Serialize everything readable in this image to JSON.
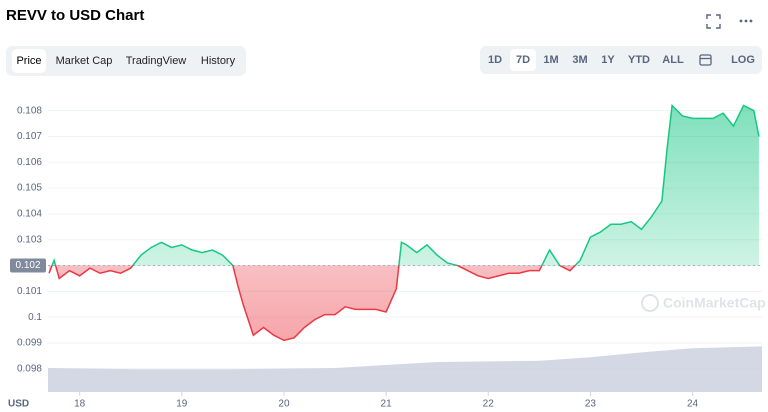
{
  "header": {
    "title": "REVV to USD Chart"
  },
  "tabs": [
    "Price",
    "Market Cap",
    "TradingView",
    "History"
  ],
  "active_tab": 0,
  "ranges": [
    "1D",
    "7D",
    "1M",
    "3M",
    "1Y",
    "YTD",
    "ALL"
  ],
  "active_range": 1,
  "log_button": "LOG",
  "watermark": "CoinMarketCap",
  "chart_data": {
    "type": "line",
    "y_axis_unit": "USD",
    "x": [
      17.7,
      17.75,
      17.8,
      17.9,
      18.0,
      18.1,
      18.2,
      18.3,
      18.4,
      18.5,
      18.6,
      18.7,
      18.8,
      18.9,
      19.0,
      19.1,
      19.2,
      19.3,
      19.4,
      19.5,
      19.55,
      19.6,
      19.7,
      19.8,
      19.9,
      20.0,
      20.1,
      20.2,
      20.3,
      20.4,
      20.5,
      20.6,
      20.7,
      20.8,
      20.9,
      21.0,
      21.1,
      21.15,
      21.2,
      21.3,
      21.4,
      21.5,
      21.6,
      21.7,
      21.8,
      21.9,
      22.0,
      22.1,
      22.2,
      22.3,
      22.4,
      22.5,
      22.6,
      22.7,
      22.8,
      22.9,
      23.0,
      23.1,
      23.2,
      23.3,
      23.4,
      23.5,
      23.6,
      23.7,
      23.75,
      23.8,
      23.9,
      24.0,
      24.1,
      24.2,
      24.3,
      24.4,
      24.5,
      24.6,
      24.65
    ],
    "values": [
      0.1017,
      0.1022,
      0.1015,
      0.1018,
      0.1016,
      0.1019,
      0.1017,
      0.1018,
      0.1017,
      0.1019,
      0.1024,
      0.1027,
      0.1029,
      0.1027,
      0.1028,
      0.1026,
      0.1025,
      0.1026,
      0.1024,
      0.102,
      0.1012,
      0.1005,
      0.0993,
      0.0996,
      0.0993,
      0.0991,
      0.0992,
      0.0996,
      0.0999,
      0.1001,
      0.1001,
      0.1004,
      0.1003,
      0.1003,
      0.1003,
      0.1002,
      0.1011,
      0.1029,
      0.1028,
      0.1025,
      0.1028,
      0.1024,
      0.1021,
      0.102,
      0.1018,
      0.1016,
      0.1015,
      0.1016,
      0.1017,
      0.1017,
      0.1018,
      0.1018,
      0.1026,
      0.102,
      0.1018,
      0.1022,
      0.1031,
      0.1033,
      0.1036,
      0.1036,
      0.1037,
      0.1034,
      0.1039,
      0.1045,
      0.1065,
      0.1082,
      0.1078,
      0.1077,
      0.1077,
      0.1077,
      0.1079,
      0.1074,
      0.1082,
      0.108,
      0.107
    ],
    "up_color": "#16c784",
    "down_color": "#ea3943",
    "baseline": 0.102,
    "xlim": [
      17.69,
      24.68
    ],
    "xticks": [
      18,
      19,
      20,
      21,
      22,
      23,
      24
    ],
    "ylim": [
      0.0971,
      0.1088
    ],
    "yticks": [
      0.098,
      0.099,
      0.1,
      0.101,
      0.102,
      0.103,
      0.104,
      0.105,
      0.106,
      0.107,
      0.108
    ],
    "grid": true,
    "volume": {
      "color": "#c9cedd",
      "lim": [
        0,
        100
      ],
      "x": [
        17.69,
        18.5,
        19.5,
        20.5,
        21.5,
        22.5,
        23.0,
        23.5,
        24.0,
        24.68
      ],
      "values": [
        40,
        38,
        38,
        40,
        50,
        52,
        58,
        66,
        73,
        76
      ]
    }
  }
}
